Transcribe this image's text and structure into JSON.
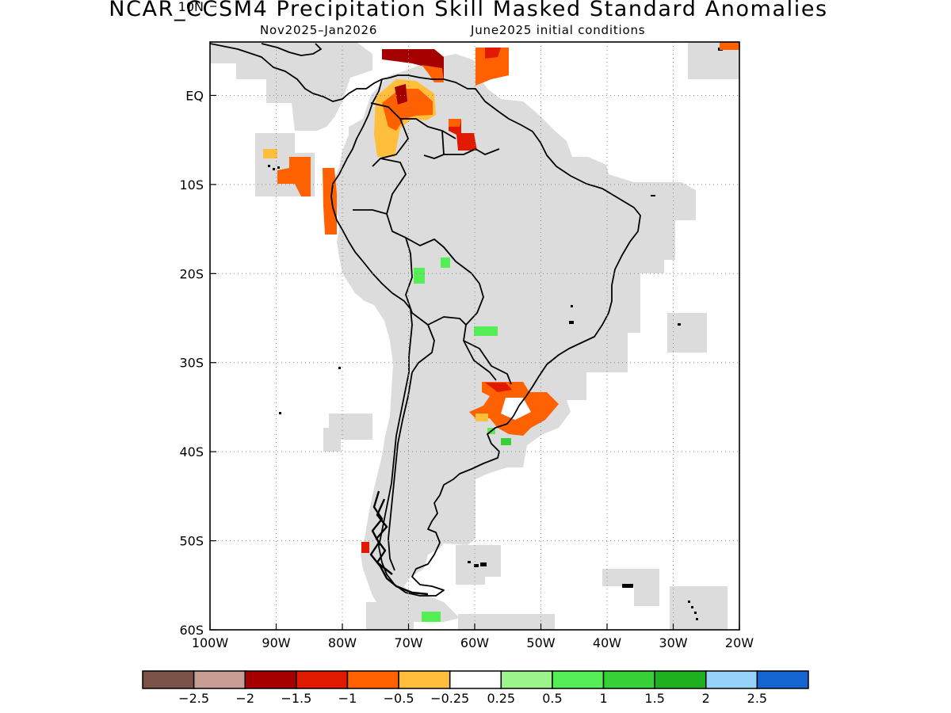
{
  "title": "NCAR_CCSM4 Precipitation Skill Masked Standard Anomalies",
  "subtitle_left": "Nov2025–Jan2026",
  "subtitle_right": "June2025 initial conditions",
  "map": {
    "region": "South America",
    "lon_range": [
      -100,
      -20
    ],
    "lat_range": [
      -60,
      6
    ],
    "grid": "dotted",
    "lon_ticks": [
      "100W",
      "90W",
      "80W",
      "70W",
      "60W",
      "50W",
      "40W",
      "30W",
      "20W"
    ],
    "lat_ticks": [
      "10N",
      "EQ",
      "10S",
      "20S",
      "30S",
      "40S",
      "50S",
      "60S"
    ],
    "masked_region_color": "#dcdcdc"
  },
  "colorbar": {
    "colors": [
      "#7b5247",
      "#c89d94",
      "#a50000",
      "#e01a00",
      "#ff6000",
      "#ffbf3c",
      "#ffffff",
      "#9cf58c",
      "#56ee56",
      "#37d037",
      "#1eb01e",
      "#96d2fa",
      "#1464d2"
    ],
    "labels": [
      "−2.5",
      "−2",
      "−1.5",
      "−1",
      "−0.5",
      "−0.25",
      "0.25",
      "0.5",
      "1",
      "1.5",
      "2",
      "2.5"
    ]
  }
}
